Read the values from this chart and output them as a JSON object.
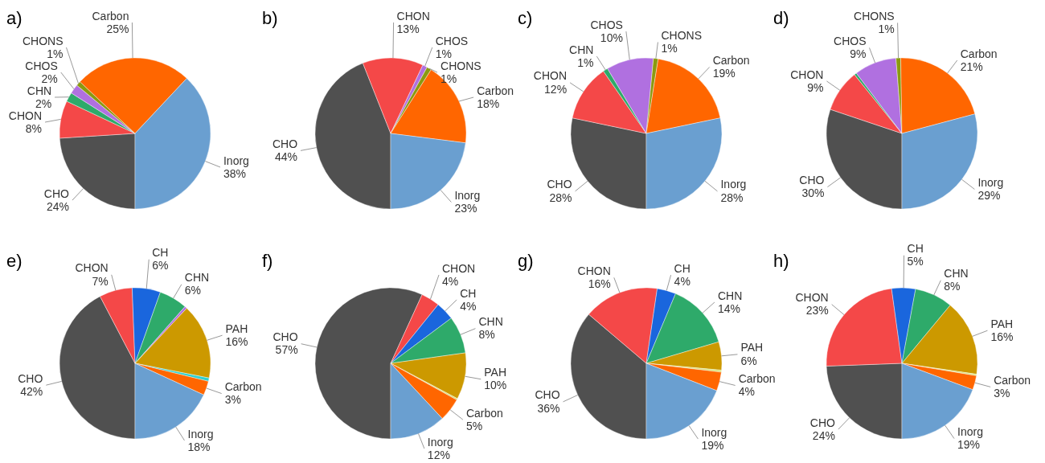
{
  "chart_data": [
    {
      "type": "pie",
      "title": "a)",
      "categories": [
        "CHO",
        "CHON",
        "CHN",
        "CHOS",
        "CHONS",
        "Carbon",
        "Inorg"
      ],
      "values": [
        24,
        8,
        2,
        2,
        1,
        25,
        38
      ],
      "value_labels": [
        "24%",
        "8%",
        "2%",
        "2%",
        "1%",
        "25%",
        "38%"
      ],
      "colors": [
        "#505050",
        "#f44848",
        "#2eaa6a",
        "#b070e0",
        "#8a9a10",
        "#ff6600",
        "#6a9fd0"
      ]
    },
    {
      "type": "pie",
      "title": "b)",
      "categories": [
        "CHO",
        "CHON",
        "CHOS",
        "CHONS",
        "Carbon",
        "Inorg"
      ],
      "values": [
        44,
        13,
        1,
        1,
        18,
        23
      ],
      "value_labels": [
        "44%",
        "13%",
        "1%",
        "1%",
        "18%",
        "23%"
      ],
      "colors": [
        "#505050",
        "#f44848",
        "#b070e0",
        "#8a9a10",
        "#ff6600",
        "#6a9fd0"
      ]
    },
    {
      "type": "pie",
      "title": "c)",
      "categories": [
        "CHO",
        "CHON",
        "CHN",
        "CHOS",
        "CHONS",
        "Carbon",
        "Inorg"
      ],
      "values": [
        28,
        12,
        1,
        10,
        1,
        19,
        28
      ],
      "value_labels": [
        "28%",
        "12%",
        "1%",
        "10%",
        "1%",
        "19%",
        "28%"
      ],
      "colors": [
        "#505050",
        "#f44848",
        "#2eaa6a",
        "#b070e0",
        "#8a9a10",
        "#ff6600",
        "#6a9fd0"
      ]
    },
    {
      "type": "pie",
      "title": "d)",
      "categories": [
        "CHO",
        "CHON",
        null,
        "CHOS",
        "CHONS",
        "Carbon",
        "Inorg"
      ],
      "values": [
        30,
        9,
        0.5,
        9,
        1,
        21,
        29
      ],
      "value_labels": [
        "30%",
        "9%",
        null,
        "9%",
        "1%",
        "21%",
        "29%"
      ],
      "colors": [
        "#505050",
        "#f44848",
        "#2eaa6a",
        "#b070e0",
        "#8a9a10",
        "#ff6600",
        "#6a9fd0"
      ]
    },
    {
      "type": "pie",
      "title": "e)",
      "categories": [
        "CHO",
        "CHON",
        "CH",
        "CHN",
        null,
        "PAH",
        null,
        "Carbon",
        "Inorg"
      ],
      "values": [
        42,
        7,
        6,
        6,
        0.5,
        16,
        0.7,
        3,
        18
      ],
      "value_labels": [
        "42%",
        "7%",
        "6%",
        "6%",
        null,
        "16%",
        null,
        "3%",
        "18%"
      ],
      "colors": [
        "#505050",
        "#f44848",
        "#1a66dd",
        "#2eaa6a",
        "#b070e0",
        "#cc9900",
        "#30d0d0",
        "#ff6600",
        "#6a9fd0"
      ]
    },
    {
      "type": "pie",
      "title": "f)",
      "categories": [
        "CHO",
        "CHON",
        "CH",
        "CHN",
        "PAH",
        null,
        "Carbon",
        "Inorg"
      ],
      "values": [
        57,
        4,
        4,
        8,
        10,
        0.3,
        5,
        12
      ],
      "value_labels": [
        "57%",
        "4%",
        "4%",
        "8%",
        "10%",
        null,
        "5%",
        "12%"
      ],
      "colors": [
        "#505050",
        "#f44848",
        "#1a66dd",
        "#2eaa6a",
        "#cc9900",
        "#d8e070",
        "#ff6600",
        "#6a9fd0"
      ]
    },
    {
      "type": "pie",
      "title": "g)",
      "categories": [
        "CHO",
        "CHON",
        "CH",
        "CHN",
        "PAH",
        null,
        "Carbon",
        "Inorg"
      ],
      "values": [
        36,
        16,
        4,
        14,
        6,
        0.4,
        4,
        19
      ],
      "value_labels": [
        "36%",
        "16%",
        "4%",
        "14%",
        "6%",
        null,
        "4%",
        "19%"
      ],
      "colors": [
        "#505050",
        "#f44848",
        "#1a66dd",
        "#2eaa6a",
        "#cc9900",
        "#d8e070",
        "#ff6600",
        "#6a9fd0"
      ]
    },
    {
      "type": "pie",
      "title": "h)",
      "categories": [
        "CHO",
        "CHON",
        "CH",
        "CHN",
        "PAH",
        null,
        "Carbon",
        "Inorg"
      ],
      "values": [
        24,
        23,
        5,
        8,
        16,
        0.3,
        3,
        19
      ],
      "value_labels": [
        "24%",
        "23%",
        "5%",
        "8%",
        "16%",
        null,
        "3%",
        "19%"
      ],
      "colors": [
        "#505050",
        "#f44848",
        "#1a66dd",
        "#2eaa6a",
        "#cc9900",
        "#d8e070",
        "#ff6600",
        "#6a9fd0"
      ]
    }
  ]
}
